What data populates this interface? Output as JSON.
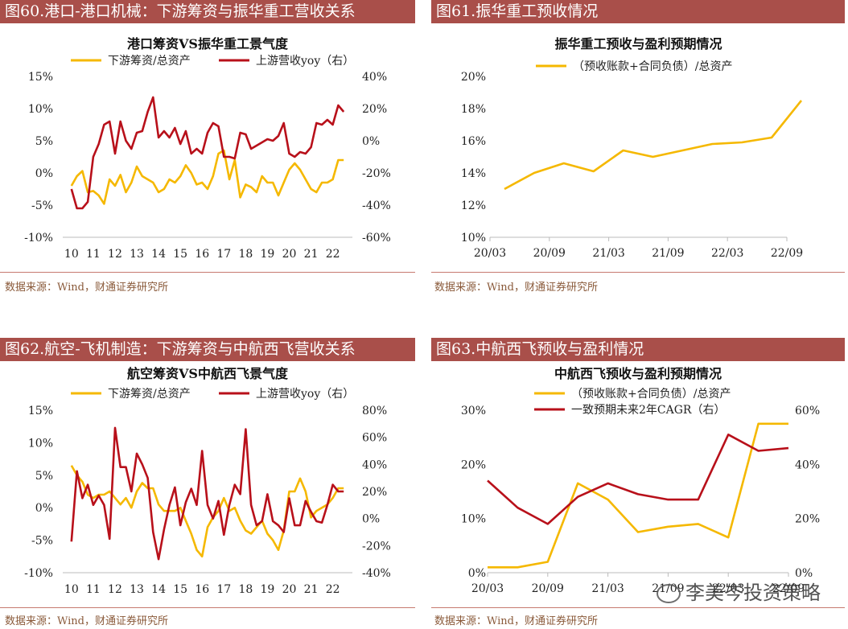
{
  "panels": [
    {
      "header": "图60.港口-港口机械：下游筹资与振华重工营收关系",
      "source": "数据来源：Wind，财通证券研究所"
    },
    {
      "header": "图61.振华重工预收情况",
      "source": "数据来源：Wind，财通证券研究所"
    },
    {
      "header": "图62.航空-飞机制造：下游筹资与中航西飞营收关系",
      "source": "数据来源：Wind，财通证券研究所"
    },
    {
      "header": "图63.中航西飞预收与盈利情况",
      "source": "数据来源：Wind，财通证券研究所"
    }
  ],
  "watermark": "李美岑投资策略",
  "colors": {
    "header_bg": "#a94f4a",
    "yellow": "#f5b800",
    "red": "#b8101a"
  },
  "chart_data": [
    {
      "type": "line",
      "title": "港口筹资VS振华重工景气度",
      "x_ticks": [
        "10",
        "11",
        "12",
        "13",
        "14",
        "15",
        "16",
        "17",
        "18",
        "19",
        "20",
        "21",
        "22"
      ],
      "x_range": [
        2009.6,
        2022.9
      ],
      "y_left": {
        "ticks": [
          "15%",
          "10%",
          "5%",
          "0%",
          "-5%",
          "-10%"
        ],
        "range": [
          -10,
          15
        ]
      },
      "y_right": {
        "ticks": [
          "40%",
          "20%",
          "0%",
          "-20%",
          "-40%",
          "-60%"
        ],
        "range": [
          -60,
          40
        ]
      },
      "series": [
        {
          "name": "下游筹资/总资产",
          "axis": "left",
          "color": "#f5b800",
          "x": [
            2010.0,
            2010.25,
            2010.5,
            2010.75,
            2011.0,
            2011.25,
            2011.5,
            2011.75,
            2012.0,
            2012.25,
            2012.5,
            2012.75,
            2013.0,
            2013.25,
            2013.5,
            2013.75,
            2014.0,
            2014.25,
            2014.5,
            2014.75,
            2015.0,
            2015.25,
            2015.5,
            2015.75,
            2016.0,
            2016.25,
            2016.5,
            2016.75,
            2017.0,
            2017.25,
            2017.5,
            2017.75,
            2018.0,
            2018.25,
            2018.5,
            2018.75,
            2019.0,
            2019.25,
            2019.5,
            2019.75,
            2020.0,
            2020.25,
            2020.5,
            2020.75,
            2021.0,
            2021.25,
            2021.5,
            2021.75,
            2022.0,
            2022.25,
            2022.5
          ],
          "y": [
            -2.0,
            -0.5,
            0.3,
            -3.0,
            -2.8,
            -3.5,
            -4.8,
            -1.0,
            -2.0,
            -0.3,
            -3.0,
            -1.5,
            1.0,
            -0.5,
            -1.0,
            -1.5,
            -3.0,
            -2.5,
            -1.0,
            -1.5,
            -0.5,
            1.2,
            0.0,
            -1.8,
            -1.5,
            -2.5,
            -0.5,
            3.0,
            3.5,
            -1.0,
            2.0,
            -3.8,
            -1.8,
            -2.2,
            -3.0,
            -0.5,
            -1.5,
            -1.5,
            -3.5,
            -1.5,
            0.5,
            1.5,
            0.5,
            -1.0,
            -2.5,
            -3.0,
            -1.5,
            -1.5,
            -1.0,
            2.0,
            2.0
          ]
        },
        {
          "name": "上游营收yoy（右）",
          "axis": "right",
          "color": "#b8101a",
          "x": [
            2010.0,
            2010.25,
            2010.5,
            2010.75,
            2011.0,
            2011.25,
            2011.5,
            2011.75,
            2012.0,
            2012.25,
            2012.5,
            2012.75,
            2013.0,
            2013.25,
            2013.5,
            2013.75,
            2014.0,
            2014.25,
            2014.5,
            2014.75,
            2015.0,
            2015.25,
            2015.5,
            2015.75,
            2016.0,
            2016.25,
            2016.5,
            2016.75,
            2017.0,
            2017.25,
            2017.5,
            2017.75,
            2018.0,
            2018.25,
            2018.5,
            2018.75,
            2019.0,
            2019.25,
            2019.5,
            2019.75,
            2020.0,
            2020.25,
            2020.5,
            2020.75,
            2021.0,
            2021.25,
            2021.5,
            2021.75,
            2022.0,
            2022.25,
            2022.5
          ],
          "y": [
            -30,
            -42,
            -42,
            -38,
            -10,
            -2,
            10,
            12,
            -8,
            12,
            0,
            -5,
            5,
            6,
            18,
            27,
            2,
            6,
            2,
            8,
            -2,
            6,
            -8,
            -5,
            -8,
            5,
            11,
            9,
            -10,
            -10,
            -11,
            5,
            4,
            -5,
            -3,
            -1,
            1,
            0,
            3,
            11,
            -8,
            -10,
            -7,
            -8,
            -4,
            11,
            10,
            13,
            10,
            22,
            18
          ]
        }
      ]
    },
    {
      "type": "line",
      "title": "振华重工预收与盈利预期情况",
      "x_ticks": [
        "20/03",
        "20/09",
        "21/03",
        "21/09",
        "22/03",
        "22/09"
      ],
      "y_left": {
        "ticks": [
          "20%",
          "18%",
          "16%",
          "14%",
          "12%",
          "10%"
        ],
        "range": [
          10,
          20
        ]
      },
      "series": [
        {
          "name": "（预收账款+合同负债）/总资产",
          "axis": "left",
          "color": "#f5b800",
          "x": [
            0,
            0.5,
            1,
            1.5,
            2,
            2.5,
            3,
            3.5,
            4,
            4.5,
            5
          ],
          "y": [
            13.0,
            14.0,
            14.6,
            14.1,
            15.4,
            15.0,
            15.4,
            15.8,
            15.9,
            16.2,
            18.5
          ]
        }
      ]
    },
    {
      "type": "line",
      "title": "航空筹资VS中航西飞景气度",
      "x_ticks": [
        "10",
        "11",
        "12",
        "13",
        "14",
        "15",
        "16",
        "17",
        "18",
        "19",
        "20",
        "21",
        "22"
      ],
      "x_range": [
        2009.6,
        2022.9
      ],
      "y_left": {
        "ticks": [
          "15%",
          "10%",
          "5%",
          "0%",
          "-5%",
          "-10%"
        ],
        "range": [
          -10,
          15
        ]
      },
      "y_right": {
        "ticks": [
          "80%",
          "60%",
          "40%",
          "20%",
          "0%",
          "-20%",
          "-40%"
        ],
        "range": [
          -40,
          80
        ]
      },
      "series": [
        {
          "name": "下游筹资/总资产",
          "axis": "left",
          "color": "#f5b800",
          "x": [
            2010.0,
            2010.25,
            2010.5,
            2010.75,
            2011.0,
            2011.25,
            2011.5,
            2011.75,
            2012.0,
            2012.25,
            2012.5,
            2012.75,
            2013.0,
            2013.25,
            2013.5,
            2013.75,
            2014.0,
            2014.25,
            2014.5,
            2014.75,
            2015.0,
            2015.25,
            2015.5,
            2015.75,
            2016.0,
            2016.25,
            2016.5,
            2016.75,
            2017.0,
            2017.25,
            2017.5,
            2017.75,
            2018.0,
            2018.25,
            2018.5,
            2018.75,
            2019.0,
            2019.25,
            2019.5,
            2019.75,
            2020.0,
            2020.25,
            2020.5,
            2020.75,
            2021.0,
            2021.25,
            2021.5,
            2021.75,
            2022.0,
            2022.25,
            2022.5
          ],
          "y": [
            6.5,
            5.0,
            4.0,
            2.0,
            1.5,
            2.0,
            2.0,
            2.5,
            1.5,
            0.5,
            1.5,
            0.0,
            2.5,
            3.8,
            3.0,
            3.0,
            0.5,
            -0.5,
            -0.5,
            -0.5,
            0.0,
            -2.0,
            -4.0,
            -6.5,
            -7.5,
            -3.0,
            -1.5,
            -0.5,
            1.5,
            -0.5,
            0.0,
            -2.0,
            -3.5,
            -4.0,
            -3.0,
            -2.0,
            -4.0,
            -5.0,
            -6.5,
            -3.5,
            2.5,
            2.5,
            4.5,
            2.5,
            -1.5,
            -0.5,
            0.0,
            0.5,
            1.5,
            3.0,
            3.0
          ]
        },
        {
          "name": "上游营收yoy（右）",
          "axis": "right",
          "color": "#b8101a",
          "x": [
            2010.0,
            2010.25,
            2010.5,
            2010.75,
            2011.0,
            2011.25,
            2011.5,
            2011.75,
            2012.0,
            2012.25,
            2012.5,
            2012.75,
            2013.0,
            2013.25,
            2013.5,
            2013.75,
            2014.0,
            2014.25,
            2014.5,
            2014.75,
            2015.0,
            2015.25,
            2015.5,
            2015.75,
            2016.0,
            2016.25,
            2016.5,
            2016.75,
            2017.0,
            2017.25,
            2017.5,
            2017.75,
            2018.0,
            2018.25,
            2018.5,
            2018.75,
            2019.0,
            2019.25,
            2019.5,
            2019.75,
            2020.0,
            2020.25,
            2020.5,
            2020.75,
            2021.0,
            2021.25,
            2021.5,
            2021.75,
            2022.0,
            2022.25,
            2022.5
          ],
          "y": [
            -17,
            35,
            15,
            25,
            10,
            17,
            10,
            -15,
            67,
            38,
            38,
            20,
            48,
            40,
            30,
            -10,
            -30,
            -8,
            10,
            23,
            -5,
            12,
            22,
            10,
            50,
            10,
            0,
            13,
            -12,
            10,
            25,
            18,
            66,
            10,
            -5,
            -2,
            18,
            -2,
            -5,
            -10,
            15,
            -5,
            -5,
            13,
            5,
            -2,
            -3,
            10,
            25,
            20,
            20
          ]
        }
      ]
    },
    {
      "type": "line",
      "title": "中航西飞预收与盈利预期情况",
      "x_ticks": [
        "20/03",
        "20/09",
        "21/03",
        "21/09",
        "22/03",
        "22/09"
      ],
      "y_left": {
        "ticks": [
          "30%",
          "20%",
          "10%",
          "0%"
        ],
        "range": [
          0,
          30
        ]
      },
      "y_right": {
        "ticks": [
          "60%",
          "40%",
          "20%",
          "0%"
        ],
        "range": [
          0,
          60
        ]
      },
      "series": [
        {
          "name": "（预收账款+合同负债）/总资产",
          "axis": "left",
          "color": "#f5b800",
          "x": [
            0,
            0.5,
            1,
            1.5,
            2,
            2.5,
            3,
            3.5,
            4,
            4.5,
            5
          ],
          "y": [
            1.0,
            1.0,
            2.0,
            16.5,
            13.5,
            7.5,
            8.5,
            9.0,
            6.5,
            27.5,
            27.5
          ]
        },
        {
          "name": "一致预期未来2年CAGR（右）",
          "axis": "right",
          "color": "#b8101a",
          "x": [
            0,
            0.5,
            1,
            1.5,
            2,
            2.5,
            3,
            3.5,
            4,
            4.5,
            5
          ],
          "y": [
            34,
            24,
            18,
            28,
            33,
            29,
            27,
            27,
            51,
            45,
            46
          ]
        }
      ]
    }
  ]
}
